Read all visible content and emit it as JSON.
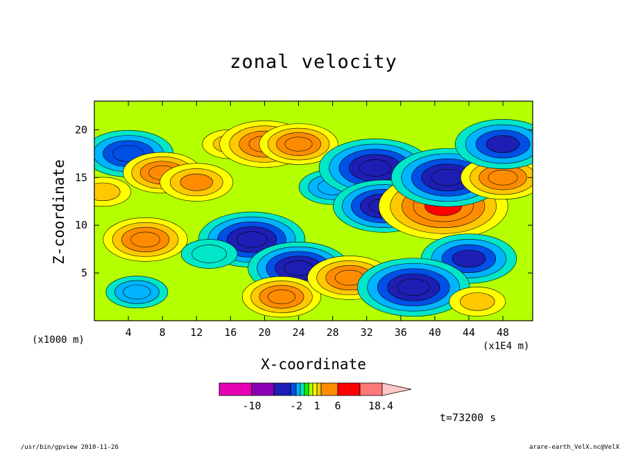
{
  "chart_data": {
    "type": "heatmap",
    "title": "zonal velocity",
    "xlabel": "X-coordinate",
    "ylabel": "Z-coordinate",
    "x_unit_label": "(x1000 m)",
    "x_unit_label_right": "(x1E4 m)",
    "xlim": [
      0,
      51.5
    ],
    "ylim": [
      0,
      23
    ],
    "x_ticks": [
      4,
      8,
      12,
      16,
      20,
      24,
      28,
      32,
      36,
      40,
      44,
      48
    ],
    "y_ticks": [
      5,
      10,
      15,
      20
    ],
    "colorbar": {
      "colors": [
        "#e600b4",
        "#8c00b4",
        "#1e1eb4",
        "#0050e6",
        "#00b4ff",
        "#00e6c8",
        "#00ff00",
        "#b4ff00",
        "#ffff00",
        "#ffc800",
        "#ff8c00",
        "#ff0000",
        "#ff7878",
        "#ffc8c8"
      ],
      "tick_labels": [
        "-10",
        "-2",
        "1",
        "6",
        "18.4"
      ],
      "tick_values": [
        -10,
        -2,
        1,
        6,
        18.4
      ]
    },
    "field_features": [
      {
        "x": 6.0,
        "z": 8.5,
        "value": 3.5
      },
      {
        "x": 5.0,
        "z": 3.0,
        "value": -1.5
      },
      {
        "x": 4.0,
        "z": 17.5,
        "value": -4.0
      },
      {
        "x": 8.0,
        "z": 15.5,
        "value": 3.0
      },
      {
        "x": 12.0,
        "z": 14.5,
        "value": 2.5
      },
      {
        "x": 16.0,
        "z": 18.5,
        "value": 1.0
      },
      {
        "x": 20.0,
        "z": 18.5,
        "value": 4.0
      },
      {
        "x": 24.0,
        "z": 18.5,
        "value": 3.0
      },
      {
        "x": 18.5,
        "z": 8.5,
        "value": -5.5
      },
      {
        "x": 24.0,
        "z": 5.5,
        "value": -5.0
      },
      {
        "x": 22.0,
        "z": 2.5,
        "value": 3.0
      },
      {
        "x": 30.0,
        "z": 4.5,
        "value": 3.5
      },
      {
        "x": 28.0,
        "z": 14.0,
        "value": -2.0
      },
      {
        "x": 33.0,
        "z": 16.0,
        "value": -6.0
      },
      {
        "x": 34.0,
        "z": 12.0,
        "value": -5.0
      },
      {
        "x": 41.0,
        "z": 12.0,
        "value": 7.5
      },
      {
        "x": 41.5,
        "z": 15.0,
        "value": -6.0
      },
      {
        "x": 44.0,
        "z": 6.5,
        "value": -4.5
      },
      {
        "x": 37.5,
        "z": 3.5,
        "value": -6.0
      },
      {
        "x": 48.0,
        "z": 15.0,
        "value": 3.5
      },
      {
        "x": 48.0,
        "z": 18.5,
        "value": -4.5
      },
      {
        "x": 1.0,
        "z": 13.5,
        "value": 1.0
      },
      {
        "x": 13.5,
        "z": 7.0,
        "value": -1.0
      },
      {
        "x": 45.0,
        "z": 2.0,
        "value": 1.0
      }
    ]
  },
  "time_label": "t=73200 s",
  "footer_left": "/usr/bin/gpview  2010-11-26",
  "footer_right": "arare-earth_VelX.nc@VelX"
}
